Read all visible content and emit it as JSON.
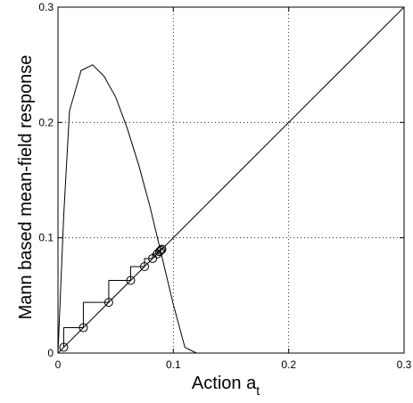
{
  "chart_data": {
    "type": "line",
    "xlabel": "Action a",
    "xlabel_subscript": "t",
    "ylabel": "Mann based mean-field response",
    "xlim": [
      0,
      0.3
    ],
    "ylim": [
      0,
      0.3
    ],
    "xticks": [
      "0",
      "0.1",
      "0.2",
      "0.3"
    ],
    "yticks": [
      "0",
      "0.1",
      "0.2",
      "0.3"
    ],
    "x_tick_values": [
      0,
      0.1,
      0.2,
      0.3
    ],
    "y_tick_values": [
      0,
      0.1,
      0.2,
      0.3
    ],
    "grid": "dotted",
    "series": [
      {
        "style": "line",
        "x": [
          0.0,
          0.3
        ],
        "y": [
          0.0,
          0.3
        ]
      },
      {
        "style": "line",
        "x": [
          0.0,
          0.005,
          0.01,
          0.02,
          0.03,
          0.04,
          0.05,
          0.06,
          0.07,
          0.08,
          0.09,
          0.1,
          0.11,
          0.12
        ],
        "y": [
          0.0,
          0.12,
          0.21,
          0.245,
          0.25,
          0.24,
          0.222,
          0.195,
          0.163,
          0.126,
          0.084,
          0.042,
          0.005,
          0.0
        ]
      },
      {
        "style": "steps",
        "x": [
          0.005,
          0.005,
          0.022,
          0.022,
          0.044,
          0.044,
          0.063,
          0.063,
          0.075,
          0.075,
          0.082,
          0.082,
          0.086,
          0.086,
          0.088,
          0.088,
          0.089,
          0.089,
          0.09
        ],
        "y": [
          0.005,
          0.022,
          0.022,
          0.044,
          0.044,
          0.063,
          0.063,
          0.075,
          0.075,
          0.082,
          0.082,
          0.086,
          0.086,
          0.088,
          0.088,
          0.089,
          0.089,
          0.09,
          0.09
        ]
      },
      {
        "style": "markers",
        "marker": "circle",
        "x": [
          0.005,
          0.022,
          0.044,
          0.063,
          0.075,
          0.082,
          0.086,
          0.088,
          0.089,
          0.09,
          0.09
        ],
        "y": [
          0.005,
          0.022,
          0.044,
          0.063,
          0.075,
          0.082,
          0.086,
          0.088,
          0.089,
          0.09,
          0.09
        ]
      }
    ]
  }
}
